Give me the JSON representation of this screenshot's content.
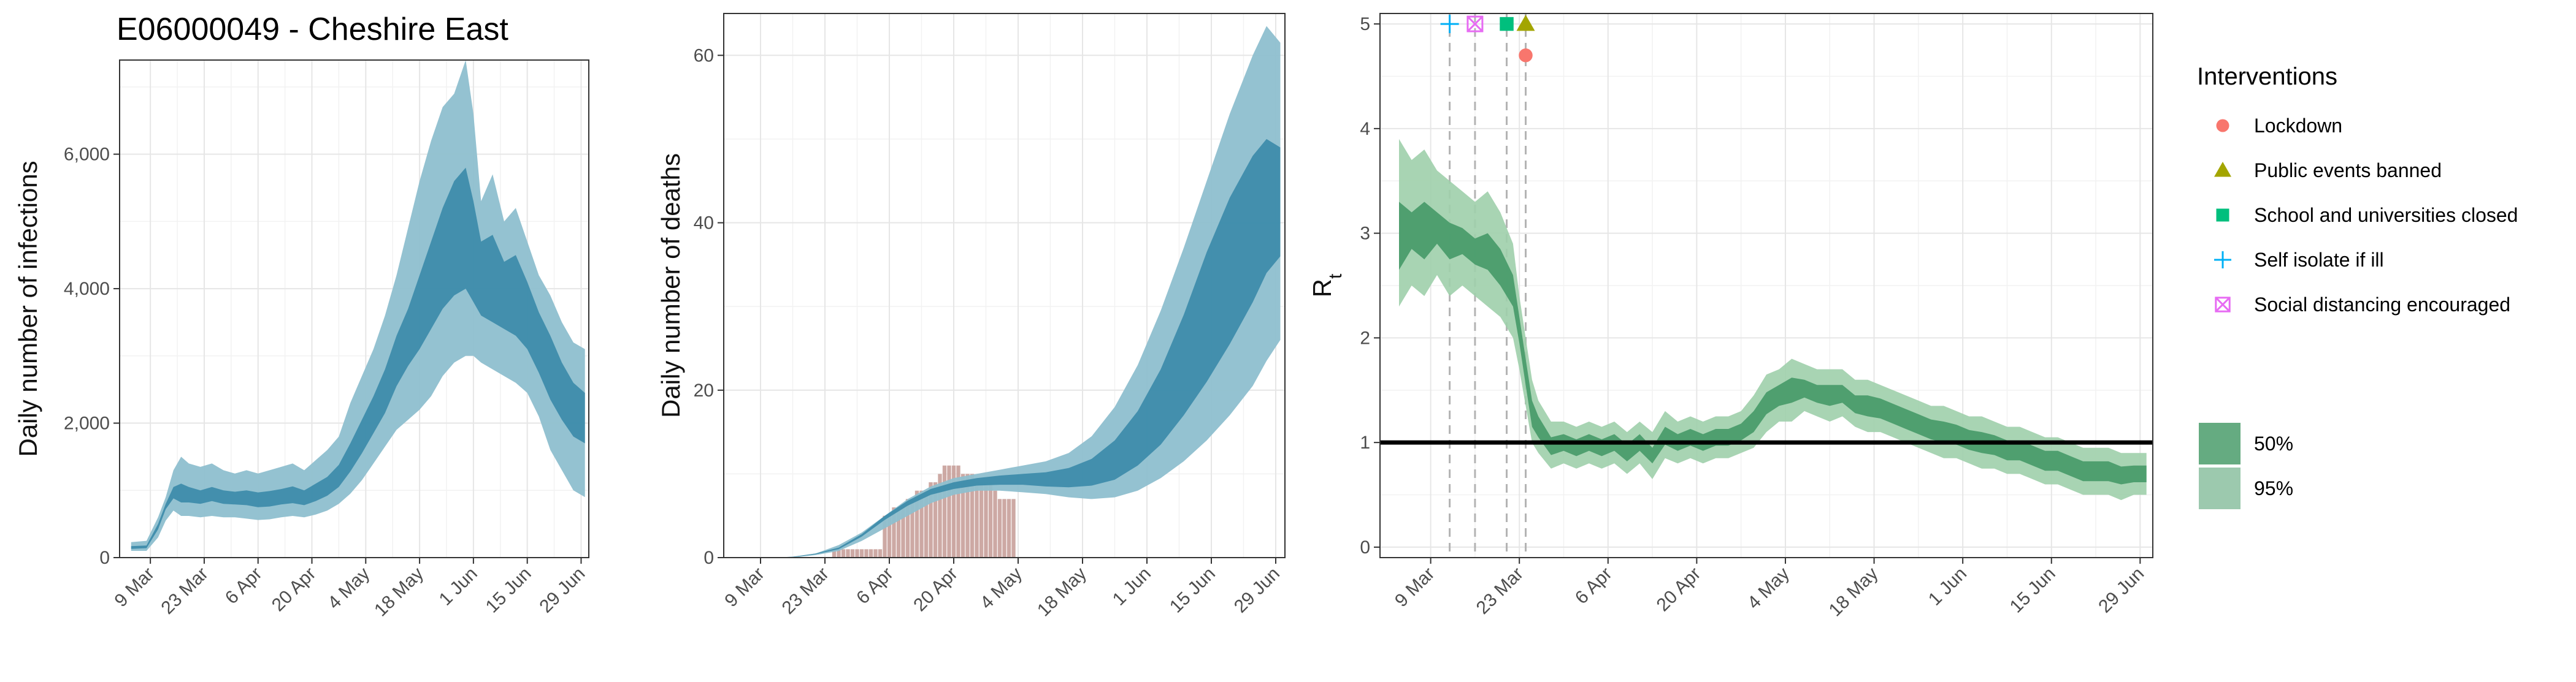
{
  "title": "E06000049 - Cheshire East",
  "colors": {
    "infection_95": "#8ebfcf",
    "infection_50": "#3a8aa8",
    "deaths_bar": "#c49a94",
    "rt_95": "#9fcfab",
    "rt_50": "#4a9c6b",
    "lockdown": "#f8766d",
    "public_events": "#a3a500",
    "school": "#00bf7d",
    "self_isolate": "#00b0f6",
    "social_distancing": "#e76bf3"
  },
  "x_tick_labels": [
    "9 Mar",
    "23 Mar",
    "6 Apr",
    "20 Apr",
    "4 May",
    "18 May",
    "1 Jun",
    "15 Jun",
    "29 Jun"
  ],
  "legend": {
    "interventions_title": "Interventions",
    "interventions": [
      {
        "label": "Lockdown",
        "shape": "circle",
        "color": "#f8766d"
      },
      {
        "label": "Public events banned",
        "shape": "triangle",
        "color": "#a3a500"
      },
      {
        "label": "School and universities closed",
        "shape": "square",
        "color": "#00bf7d"
      },
      {
        "label": "Self isolate if ill",
        "shape": "plus",
        "color": "#00b0f6"
      },
      {
        "label": "Social distancing encouraged",
        "shape": "boxx",
        "color": "#e76bf3"
      }
    ],
    "ci": [
      {
        "label": "50%",
        "color": "#4a9c6b",
        "opacity": 0.85
      },
      {
        "label": "95%",
        "color": "#4a9c6b",
        "opacity": 0.55
      }
    ]
  },
  "chart_data": [
    {
      "type": "area",
      "ylabel": "Daily number of infections",
      "x_range_days": [
        0,
        122
      ],
      "ylim": [
        0,
        7400
      ],
      "y_ticks": [
        0,
        2000,
        4000,
        6000
      ],
      "y_tick_labels": [
        "0",
        "2,000",
        "4,000",
        "6,000"
      ],
      "x_ticks_days": [
        8,
        22,
        36,
        50,
        64,
        78,
        92,
        106,
        120
      ],
      "series": [
        {
          "name": "95%",
          "x": [
            3,
            7,
            10,
            12,
            14,
            16,
            18,
            21,
            24,
            27,
            30,
            33,
            36,
            39,
            42,
            45,
            48,
            51,
            54,
            57,
            60,
            63,
            66,
            69,
            72,
            75,
            78,
            81,
            84,
            87,
            90,
            92,
            94,
            97,
            100,
            103,
            106,
            109,
            112,
            115,
            118,
            121
          ],
          "lower": [
            100,
            100,
            300,
            550,
            700,
            620,
            620,
            600,
            620,
            600,
            600,
            580,
            560,
            570,
            600,
            620,
            600,
            640,
            700,
            800,
            950,
            1150,
            1400,
            1650,
            1900,
            2050,
            2200,
            2400,
            2700,
            2900,
            3000,
            3000,
            2900,
            2800,
            2700,
            2600,
            2450,
            2100,
            1600,
            1300,
            1000,
            900
          ],
          "upper": [
            230,
            250,
            600,
            900,
            1300,
            1500,
            1400,
            1350,
            1400,
            1300,
            1250,
            1300,
            1250,
            1300,
            1350,
            1400,
            1300,
            1450,
            1600,
            1800,
            2300,
            2700,
            3100,
            3600,
            4200,
            4900,
            5600,
            6200,
            6700,
            6900,
            7400,
            6600,
            5300,
            5700,
            5000,
            5200,
            4700,
            4200,
            3900,
            3500,
            3200,
            3100
          ]
        },
        {
          "name": "50%",
          "x": [
            3,
            7,
            10,
            12,
            14,
            16,
            18,
            21,
            24,
            27,
            30,
            33,
            36,
            39,
            42,
            45,
            48,
            51,
            54,
            57,
            60,
            63,
            66,
            69,
            72,
            75,
            78,
            81,
            84,
            87,
            90,
            92,
            94,
            97,
            100,
            103,
            106,
            109,
            112,
            115,
            118,
            121
          ],
          "lower": [
            130,
            140,
            420,
            720,
            880,
            820,
            820,
            800,
            840,
            800,
            790,
            780,
            750,
            760,
            790,
            810,
            780,
            840,
            920,
            1050,
            1280,
            1550,
            1850,
            2150,
            2550,
            2850,
            3100,
            3400,
            3700,
            3900,
            4000,
            3800,
            3600,
            3500,
            3400,
            3300,
            3100,
            2750,
            2350,
            2050,
            1800,
            1700
          ],
          "upper": [
            170,
            180,
            500,
            800,
            1050,
            1100,
            1050,
            1000,
            1050,
            1000,
            980,
            1000,
            970,
            990,
            1020,
            1060,
            1000,
            1100,
            1200,
            1380,
            1700,
            2050,
            2400,
            2800,
            3300,
            3700,
            4200,
            4700,
            5200,
            5600,
            5800,
            5300,
            4700,
            4800,
            4400,
            4500,
            4100,
            3650,
            3300,
            2900,
            2600,
            2450
          ]
        }
      ]
    },
    {
      "type": "area",
      "ylabel": "Daily number of deaths",
      "x_range_days": [
        0,
        122
      ],
      "ylim": [
        0,
        65
      ],
      "y_ticks": [
        0,
        20,
        40,
        60
      ],
      "y_tick_labels": [
        "0",
        "20",
        "40",
        "60"
      ],
      "x_ticks_days": [
        8,
        22,
        36,
        50,
        64,
        78,
        92,
        106,
        120
      ],
      "series": [
        {
          "name": "95%",
          "x": [
            10,
            15,
            20,
            25,
            30,
            35,
            40,
            45,
            50,
            55,
            60,
            65,
            70,
            75,
            80,
            85,
            90,
            95,
            100,
            105,
            110,
            115,
            118,
            121
          ],
          "lower": [
            0,
            0,
            0.3,
            0.8,
            2,
            3.5,
            5,
            6.5,
            7.5,
            8,
            8,
            7.8,
            7.6,
            7.2,
            7,
            7.2,
            8,
            9.5,
            11.5,
            14,
            17,
            20.5,
            23.5,
            26
          ],
          "upper": [
            0,
            0.1,
            0.5,
            1.5,
            3,
            5,
            7,
            8.5,
            9.5,
            10,
            10.5,
            11,
            11.5,
            12.5,
            14.5,
            18,
            23,
            29.5,
            37,
            45,
            53,
            60,
            63.5,
            61.5
          ]
        },
        {
          "name": "50%",
          "x": [
            10,
            15,
            20,
            25,
            30,
            35,
            40,
            45,
            50,
            55,
            60,
            65,
            70,
            75,
            80,
            85,
            90,
            95,
            100,
            105,
            110,
            115,
            118,
            121
          ],
          "lower": [
            0,
            0.05,
            0.4,
            1,
            2.5,
            4.5,
            6.2,
            7.5,
            8.2,
            8.6,
            8.7,
            8.7,
            8.5,
            8.4,
            8.6,
            9.3,
            11,
            13.5,
            17,
            21,
            25.5,
            30.5,
            34,
            36
          ],
          "upper": [
            0,
            0.1,
            0.5,
            1.2,
            2.8,
            5,
            6.8,
            8.2,
            9,
            9.5,
            9.8,
            10,
            10.2,
            10.7,
            11.8,
            14,
            17.5,
            22.5,
            29,
            36.5,
            43,
            48,
            50,
            49
          ]
        }
      ],
      "bars": {
        "x": [
          21,
          22,
          23,
          24,
          25,
          26,
          27,
          28,
          29,
          30,
          31,
          32,
          33,
          34,
          35,
          36,
          37,
          38,
          39,
          40,
          41,
          42,
          43,
          44,
          45,
          46,
          47,
          48,
          49,
          50,
          51,
          52,
          53,
          54,
          55,
          56,
          57,
          58,
          59,
          60,
          61,
          62,
          63
        ],
        "values": [
          0,
          0,
          0,
          1,
          1,
          1,
          1,
          1,
          1,
          1,
          1,
          1,
          1,
          1,
          5,
          5,
          6,
          6,
          6,
          7,
          7,
          8,
          8,
          8,
          9,
          9,
          10,
          11,
          11,
          11,
          11,
          10,
          10,
          10,
          9,
          9,
          9,
          9,
          8,
          7,
          7,
          7,
          7
        ]
      }
    },
    {
      "type": "area",
      "ylabel": "R",
      "ylabel_sub": "t",
      "x_range_days": [
        0,
        122
      ],
      "ylim": [
        -0.1,
        5.1
      ],
      "y_ticks": [
        0,
        1,
        2,
        3,
        4,
        5
      ],
      "y_tick_labels": [
        "0",
        "1",
        "2",
        "3",
        "4",
        "5"
      ],
      "x_ticks_days": [
        8,
        22,
        36,
        50,
        64,
        78,
        92,
        106,
        120
      ],
      "reference_line": 1,
      "series": [
        {
          "name": "95%",
          "x": [
            3,
            5,
            7,
            9,
            11,
            13,
            15,
            17,
            19,
            21,
            22,
            23,
            24,
            25,
            27,
            29,
            31,
            33,
            35,
            37,
            39,
            41,
            43,
            45,
            47,
            49,
            51,
            53,
            55,
            57,
            59,
            61,
            63,
            65,
            67,
            69,
            71,
            73,
            75,
            77,
            79,
            81,
            83,
            85,
            87,
            89,
            91,
            93,
            95,
            97,
            99,
            101,
            103,
            105,
            107,
            109,
            111,
            113,
            115,
            117,
            119,
            121
          ],
          "lower": [
            2.3,
            2.5,
            2.4,
            2.6,
            2.4,
            2.5,
            2.4,
            2.3,
            2.2,
            2.0,
            1.7,
            1.35,
            1.0,
            0.9,
            0.75,
            0.8,
            0.75,
            0.8,
            0.75,
            0.8,
            0.7,
            0.8,
            0.65,
            0.85,
            0.8,
            0.85,
            0.8,
            0.85,
            0.85,
            0.9,
            0.95,
            1.1,
            1.2,
            1.2,
            1.3,
            1.25,
            1.2,
            1.25,
            1.15,
            1.1,
            1.1,
            1.05,
            1.0,
            0.95,
            0.9,
            0.85,
            0.85,
            0.8,
            0.75,
            0.75,
            0.7,
            0.7,
            0.65,
            0.6,
            0.6,
            0.55,
            0.5,
            0.5,
            0.5,
            0.45,
            0.5,
            0.5
          ],
          "upper": [
            3.9,
            3.7,
            3.8,
            3.6,
            3.5,
            3.4,
            3.3,
            3.4,
            3.2,
            2.9,
            2.4,
            2.0,
            1.6,
            1.4,
            1.2,
            1.2,
            1.15,
            1.2,
            1.15,
            1.2,
            1.1,
            1.2,
            1.1,
            1.3,
            1.2,
            1.25,
            1.2,
            1.25,
            1.25,
            1.3,
            1.45,
            1.65,
            1.7,
            1.8,
            1.75,
            1.7,
            1.7,
            1.7,
            1.6,
            1.6,
            1.55,
            1.5,
            1.45,
            1.4,
            1.35,
            1.35,
            1.3,
            1.25,
            1.25,
            1.2,
            1.15,
            1.15,
            1.1,
            1.05,
            1.05,
            1.0,
            0.95,
            0.95,
            0.95,
            0.9,
            0.9,
            0.9
          ]
        },
        {
          "name": "50%",
          "x": [
            3,
            5,
            7,
            9,
            11,
            13,
            15,
            17,
            19,
            21,
            22,
            23,
            24,
            25,
            27,
            29,
            31,
            33,
            35,
            37,
            39,
            41,
            43,
            45,
            47,
            49,
            51,
            53,
            55,
            57,
            59,
            61,
            63,
            65,
            67,
            69,
            71,
            73,
            75,
            77,
            79,
            81,
            83,
            85,
            87,
            89,
            91,
            93,
            95,
            97,
            99,
            101,
            103,
            105,
            107,
            109,
            111,
            113,
            115,
            117,
            119,
            121
          ],
          "lower": [
            2.65,
            2.85,
            2.75,
            2.9,
            2.75,
            2.8,
            2.7,
            2.65,
            2.5,
            2.3,
            1.95,
            1.55,
            1.15,
            1.05,
            0.88,
            0.92,
            0.87,
            0.92,
            0.87,
            0.92,
            0.82,
            0.92,
            0.8,
            0.98,
            0.92,
            0.97,
            0.92,
            0.97,
            0.97,
            1.02,
            1.1,
            1.27,
            1.35,
            1.38,
            1.43,
            1.38,
            1.35,
            1.38,
            1.28,
            1.25,
            1.23,
            1.18,
            1.13,
            1.08,
            1.03,
            1.0,
            0.98,
            0.93,
            0.9,
            0.88,
            0.83,
            0.83,
            0.78,
            0.73,
            0.73,
            0.68,
            0.63,
            0.63,
            0.63,
            0.6,
            0.62,
            0.62
          ],
          "upper": [
            3.3,
            3.2,
            3.3,
            3.2,
            3.1,
            3.05,
            2.95,
            3.0,
            2.85,
            2.6,
            2.2,
            1.8,
            1.4,
            1.25,
            1.05,
            1.08,
            1.03,
            1.08,
            1.03,
            1.08,
            0.98,
            1.08,
            0.95,
            1.15,
            1.08,
            1.13,
            1.08,
            1.13,
            1.13,
            1.18,
            1.3,
            1.48,
            1.55,
            1.62,
            1.6,
            1.55,
            1.55,
            1.55,
            1.45,
            1.45,
            1.42,
            1.37,
            1.32,
            1.27,
            1.22,
            1.2,
            1.17,
            1.12,
            1.1,
            1.07,
            1.02,
            1.02,
            0.97,
            0.92,
            0.92,
            0.87,
            0.82,
            0.82,
            0.82,
            0.77,
            0.78,
            0.78
          ]
        }
      ],
      "intervention_markers": [
        {
          "label": "Self isolate if ill",
          "x": 11,
          "y": 5.0
        },
        {
          "label": "Social distancing encouraged",
          "x": 15,
          "y": 5.0
        },
        {
          "label": "School and universities closed",
          "x": 20,
          "y": 5.0
        },
        {
          "label": "Public events banned",
          "x": 23,
          "y": 5.0
        },
        {
          "label": "Lockdown",
          "x": 23,
          "y": 4.7
        }
      ]
    }
  ]
}
